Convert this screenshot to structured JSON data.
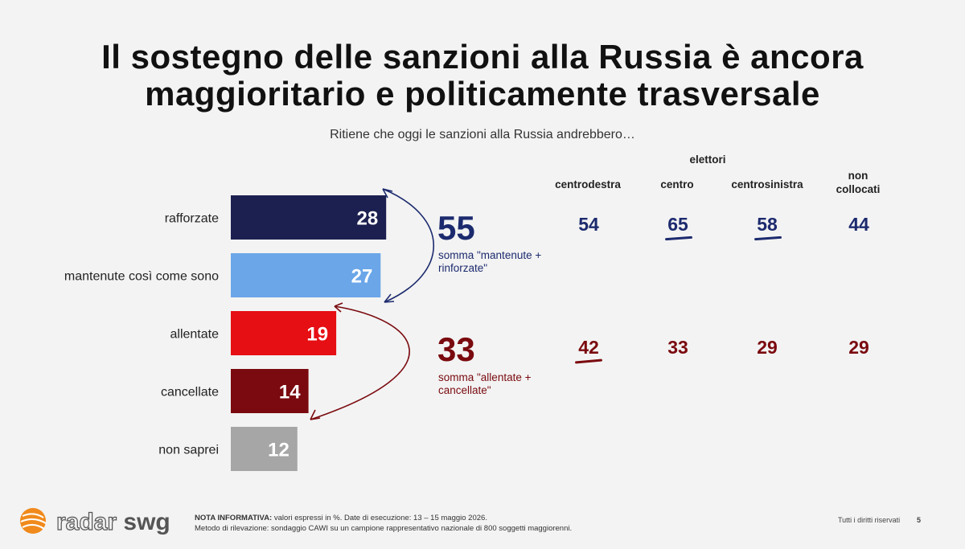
{
  "title": {
    "line1": "Il sostegno delle sanzioni alla Russia è ancora",
    "line2": "maggioritario e politicamente trasversale"
  },
  "question": "Ritiene che oggi le sanzioni alla Russia andrebbero…",
  "colors": {
    "rafforzate": "#1c2050",
    "mantenute": "#6aa6e8",
    "allentate": "#e60f14",
    "cancellate": "#7a0a0f",
    "non_saprei": "#a6a6a6",
    "navy_text": "#1c2a6e",
    "red_text": "#7a0a0f"
  },
  "chart_data": {
    "type": "bar",
    "orientation": "horizontal",
    "categories": [
      "rafforzate",
      "mantenute così come sono",
      "allentate",
      "cancellate",
      "non saprei"
    ],
    "values": [
      28,
      27,
      19,
      14,
      12
    ],
    "title": "Il sostegno delle sanzioni alla Russia è ancora maggioritario e politicamente trasversale",
    "subtitle": "Ritiene che oggi le sanzioni alla Russia andrebbero…",
    "xlabel": "",
    "ylabel": "",
    "grid": false
  },
  "summaries": [
    {
      "value": "55",
      "caption_line1": "somma \"mantenute +",
      "caption_line2": "rinforzate\""
    },
    {
      "value": "33",
      "caption_line1": "somma \"allentate +",
      "caption_line2": "cancellate\""
    }
  ],
  "electorate": {
    "group_label": "elettori",
    "columns": [
      "centrodestra",
      "centro",
      "centrosinistra",
      "non collocati"
    ],
    "support": [
      "54",
      "65",
      "58",
      "44"
    ],
    "opposition": [
      "42",
      "33",
      "29",
      "29"
    ]
  },
  "footer": {
    "note_label": "NOTA INFORMATIVA:",
    "note_text": "valori espressi in %. Date di esecuzione: 13 – 15 maggio 2026.",
    "method": "Metodo di rilevazione: sondaggio CAWI su un campione rappresentativo nazionale di 800 soggetti maggiorenni.",
    "rights": "Tutti i diritti riservati",
    "page": "5",
    "logo_word1": "radar",
    "logo_word2": "swg"
  }
}
